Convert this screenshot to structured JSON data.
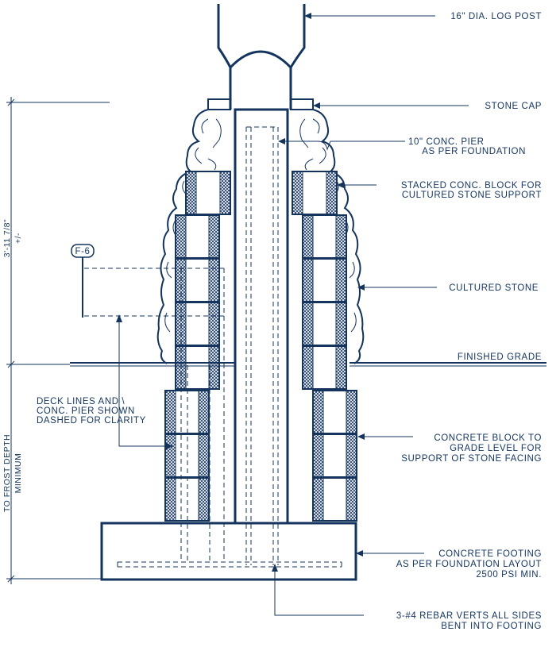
{
  "colors": {
    "ink": "#14345e",
    "background": "#ffffff"
  },
  "callouts": {
    "log_post": "16\" DIA. LOG POST",
    "stone_cap": "STONE CAP",
    "conc_pier_1": "10\" CONC. PIER",
    "conc_pier_2": "AS PER FOUNDATION",
    "stacked_block_1": "STACKED CONC. BLOCK FOR",
    "stacked_block_2": "CULTURED STONE SUPPORT",
    "cultured_stone": "CULTURED STONE",
    "finished_grade": "FINISHED GRADE",
    "deck_lines_1": "DECK LINES AND \\",
    "deck_lines_2": "CONC. PIER SHOWN",
    "deck_lines_3": "DASHED FOR CLARITY",
    "concrete_block_1": "CONCRETE BLOCK TO",
    "concrete_block_2": "GRADE LEVEL FOR",
    "concrete_block_3": "SUPPORT OF STONE FACING",
    "footing_1": "CONCRETE FOOTING",
    "footing_2": "AS PER FOUNDATION LAYOUT",
    "footing_3": "2500 PSI MIN.",
    "rebar_1": "3-#4 REBAR VERTS ALL SIDES",
    "rebar_2": "BENT INTO FOOTING"
  },
  "dimensions": {
    "height_1": "3'-11 7/8\"",
    "height_2": "+/-",
    "depth_1": "TO FROST DEPTH",
    "depth_2": "MINIMUM"
  },
  "tag": "F-6"
}
